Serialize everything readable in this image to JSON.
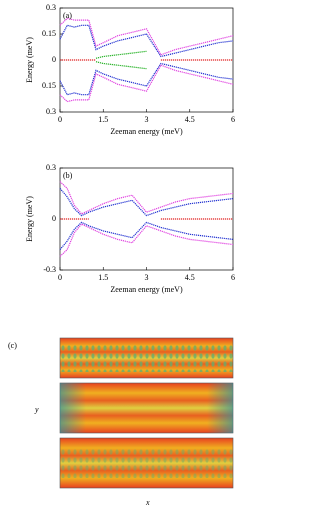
{
  "chart_data": [
    {
      "type": "line",
      "panel_label": "(a)",
      "xlabel": "Zeeman energy (meV)",
      "ylabel": "Energy (meV)",
      "x": [
        0,
        0.25,
        0.5,
        0.75,
        1,
        1.25,
        1.5,
        2,
        2.5,
        3,
        3.5,
        4,
        4.5,
        5,
        5.5,
        6
      ],
      "xlim": [
        0,
        6
      ],
      "ylim": [
        -0.3,
        0.3
      ],
      "xticks": [
        0,
        1.5,
        3,
        4.5,
        6
      ],
      "yticks": [
        {
          "value": -0.3,
          "label": "0.3"
        },
        {
          "value": -0.15,
          "label": "0.15"
        },
        0,
        0.15,
        0.3
      ],
      "grid": false,
      "series": [
        {
          "color": "#e040e0",
          "values": [
            0.2,
            0.24,
            0.23,
            0.23,
            0.23,
            0.08,
            0.1,
            0.14,
            0.16,
            0.18,
            0.03,
            0.06,
            0.08,
            0.1,
            0.12,
            0.14
          ]
        },
        {
          "color": "#e040e0",
          "values": [
            -0.2,
            -0.24,
            -0.23,
            -0.23,
            -0.23,
            -0.08,
            -0.1,
            -0.14,
            -0.16,
            -0.18,
            -0.03,
            -0.06,
            -0.08,
            -0.1,
            -0.12,
            -0.14
          ]
        },
        {
          "color": "#1f2fd0",
          "values": [
            0.12,
            0.2,
            0.19,
            0.2,
            0.2,
            0.06,
            0.08,
            0.11,
            0.13,
            0.15,
            0.02,
            0.04,
            0.06,
            0.08,
            0.1,
            0.11
          ]
        },
        {
          "color": "#1f2fd0",
          "values": [
            -0.12,
            -0.2,
            -0.19,
            -0.2,
            -0.2,
            -0.06,
            -0.08,
            -0.11,
            -0.13,
            -0.15,
            -0.02,
            -0.04,
            -0.06,
            -0.08,
            -0.1,
            -0.11
          ]
        },
        {
          "color": "#20b020",
          "values": [
            null,
            null,
            null,
            null,
            null,
            0.01,
            0.02,
            0.03,
            0.04,
            0.05,
            null,
            null,
            null,
            null,
            null,
            null
          ]
        },
        {
          "color": "#20b020",
          "values": [
            null,
            null,
            null,
            null,
            null,
            -0.01,
            -0.02,
            -0.03,
            -0.04,
            -0.05,
            null,
            null,
            null,
            null,
            null,
            null
          ]
        },
        {
          "color": "#e02020",
          "values": [
            0,
            0,
            0,
            0,
            0,
            0,
            null,
            null,
            null,
            null,
            0,
            0,
            0,
            0,
            0,
            0
          ]
        }
      ]
    },
    {
      "type": "line",
      "panel_label": "(b)",
      "xlabel": "Zeeman energy (meV)",
      "ylabel": "Energy (meV)",
      "x": [
        0,
        0.25,
        0.5,
        0.75,
        1,
        1.5,
        2,
        2.5,
        3,
        3.5,
        4,
        4.5,
        5,
        5.5,
        6
      ],
      "xlim": [
        0,
        6
      ],
      "ylim": [
        -0.3,
        0.3
      ],
      "xticks": [
        0,
        1.5,
        3,
        4.5,
        6
      ],
      "yticks": [
        -0.3,
        0,
        0.3
      ],
      "grid": false,
      "series": [
        {
          "color": "#e040e0",
          "values": [
            0.22,
            0.18,
            0.08,
            0.03,
            0.05,
            0.09,
            0.12,
            0.14,
            0.04,
            0.07,
            0.1,
            0.12,
            0.13,
            0.14,
            0.15
          ]
        },
        {
          "color": "#e040e0",
          "values": [
            -0.22,
            -0.18,
            -0.08,
            -0.03,
            -0.05,
            -0.09,
            -0.12,
            -0.14,
            -0.04,
            -0.07,
            -0.1,
            -0.12,
            -0.13,
            -0.14,
            -0.15
          ]
        },
        {
          "color": "#1f2fd0",
          "values": [
            0.18,
            0.13,
            0.06,
            0.02,
            0.04,
            0.07,
            0.09,
            0.11,
            0.02,
            0.05,
            0.07,
            0.09,
            0.1,
            0.11,
            0.12
          ]
        },
        {
          "color": "#1f2fd0",
          "values": [
            -0.18,
            -0.13,
            -0.06,
            -0.02,
            -0.04,
            -0.07,
            -0.09,
            -0.11,
            -0.02,
            -0.05,
            -0.07,
            -0.09,
            -0.1,
            -0.11,
            -0.12
          ]
        },
        {
          "color": "#e02020",
          "values": [
            0,
            0,
            0,
            0,
            0,
            null,
            null,
            null,
            null,
            0,
            0,
            0,
            0,
            0,
            0
          ]
        }
      ]
    }
  ],
  "heatmap": {
    "panel_label": "(c)",
    "ylabel": "y",
    "xlabel": "x"
  }
}
